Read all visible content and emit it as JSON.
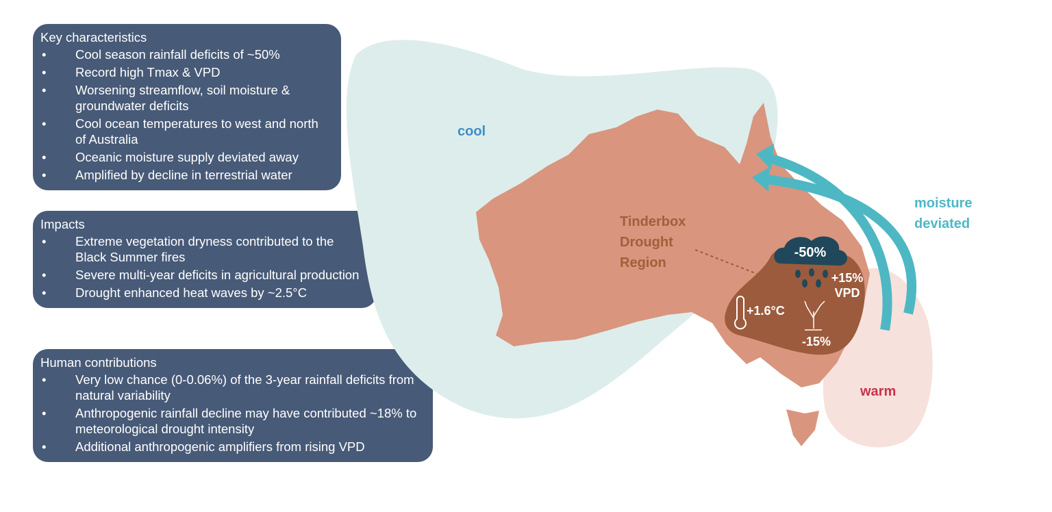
{
  "panels": [
    {
      "title": "Key characteristics",
      "items": [
        "Cool season rainfall deficits of ~50%",
        "Record high Tmax & VPD",
        "Worsening streamflow, soil moisture & groundwater deficits",
        "Cool ocean temperatures to west and north of Australia",
        "Oceanic moisture supply deviated away",
        "Amplified by decline in terrestrial water"
      ]
    },
    {
      "title": "Impacts",
      "items": [
        "Extreme vegetation dryness contributed to the Black Summer fires",
        "Severe multi-year deficits in agricultural production",
        "Drought enhanced heat waves by ~2.5°C"
      ]
    },
    {
      "title": "Human contributions",
      "items": [
        "Very low  chance (0-0.06%) of the 3-year rainfall deficits from natural variability",
        "Anthropogenic rainfall decline may have contributed ~18% to meteorological drought intensity",
        "Additional anthropogenic amplifiers from rising VPD"
      ]
    }
  ],
  "map": {
    "cool": "cool",
    "warm": "warm",
    "moisture": [
      "moisture",
      "deviated"
    ],
    "region": [
      "Tinderbox",
      "Drought",
      "Region"
    ],
    "rainfall": "-50%",
    "vpd": [
      "+15%",
      "VPD"
    ],
    "temperature": "+1.6°C",
    "vegetation": "-15%"
  }
}
